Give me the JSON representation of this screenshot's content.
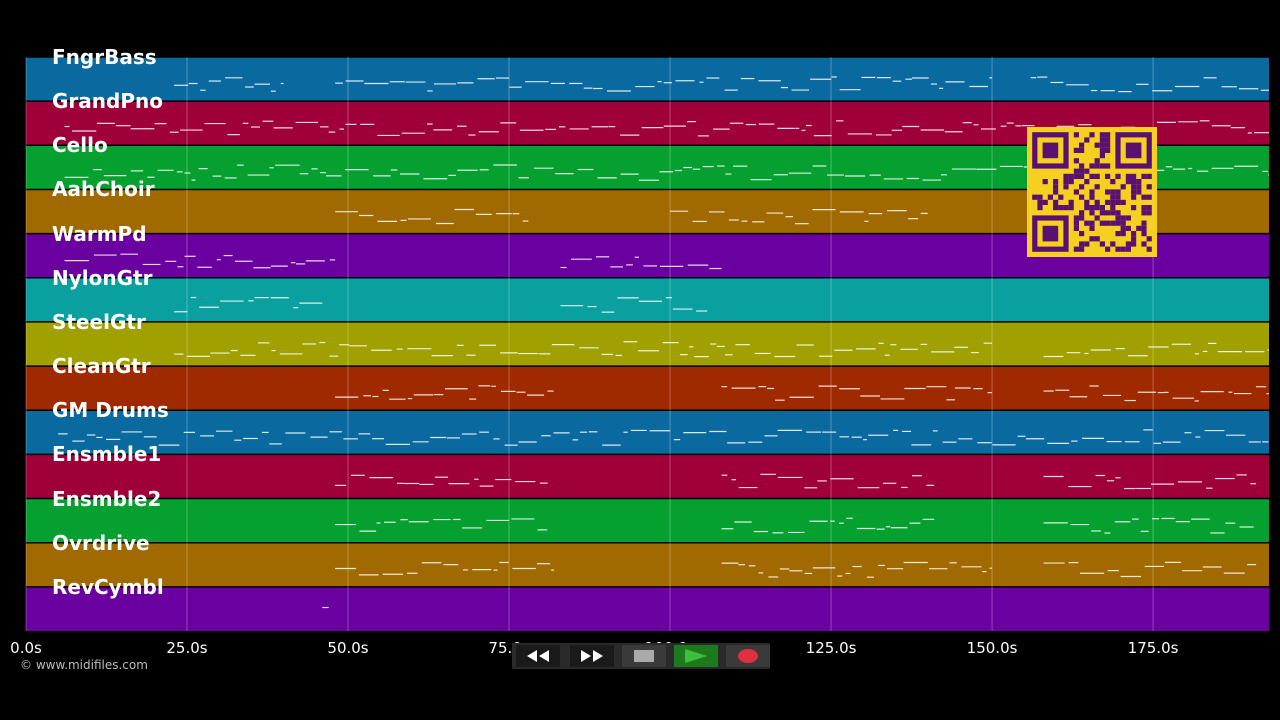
{
  "tracks": [
    {
      "name": "FngrBass",
      "color": "#0a6aa0"
    },
    {
      "name": "GrandPno",
      "color": "#a0003a"
    },
    {
      "name": "Cello",
      "color": "#06a030"
    },
    {
      "name": "AahChoir",
      "color": "#a06a00"
    },
    {
      "name": "WarmPd",
      "color": "#6a00a0"
    },
    {
      "name": "NylonGtr",
      "color": "#0aa0a0"
    },
    {
      "name": "SteelGtr",
      "color": "#a0a000"
    },
    {
      "name": "CleanGtr",
      "color": "#a02a00"
    },
    {
      "name": "GM Drums",
      "color": "#0a6aa0"
    },
    {
      "name": "Ensmble1",
      "color": "#a0003a"
    },
    {
      "name": "Ensmble2",
      "color": "#06a030"
    },
    {
      "name": "Ovrdrive",
      "color": "#a06a00"
    },
    {
      "name": "RevCymbl",
      "color": "#6a00a0"
    }
  ],
  "timeline": {
    "max_seconds": 193,
    "ticks": [
      "0.0s",
      "25.0s",
      "50.0s",
      "75.0s",
      "100.0s",
      "125.0s",
      "150.0s",
      "175.0s"
    ],
    "tick_values": [
      0,
      25,
      50,
      75,
      100,
      125,
      150,
      175
    ]
  },
  "copyright": "© www.midifiles.com",
  "transport": {
    "rewind": "rewind-icon",
    "fast_forward": "fast-forward-icon",
    "stop": "stop-icon",
    "play": "play-icon",
    "record": "record-icon"
  },
  "qr_code": "qr-code-icon",
  "colors": {
    "background": "#000000",
    "note": "#ffffff",
    "play": "#3cc03c",
    "record": "#e03040",
    "qr": "#f5d020"
  }
}
